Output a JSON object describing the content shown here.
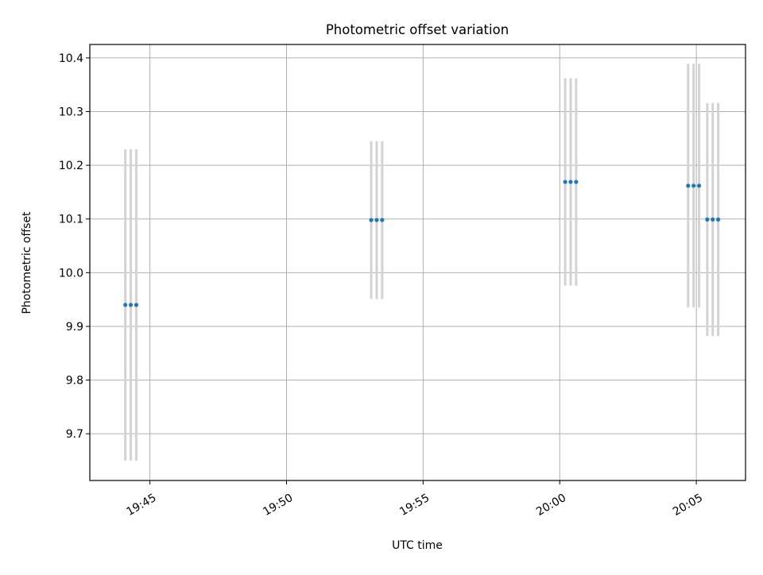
{
  "chart_data": {
    "type": "scatter",
    "title": "Photometric offset variation",
    "xlabel": "UTC time",
    "ylabel": "Photometric offset",
    "x_tick_labels": [
      "19:45",
      "19:50",
      "19:55",
      "20:00",
      "20:05"
    ],
    "x_ticks_minutes": [
      1185,
      1190,
      1195,
      1200,
      1205
    ],
    "xlim_minutes": [
      1182.8,
      1206.8
    ],
    "y_ticks": [
      9.7,
      9.8,
      9.9,
      10.0,
      10.1,
      10.2,
      10.3,
      10.4
    ],
    "y_tick_labels": [
      "9.7",
      "9.8",
      "9.9",
      "10.0",
      "10.1",
      "10.2",
      "10.3",
      "10.4"
    ],
    "ylim": [
      9.613,
      10.425
    ],
    "grid": true,
    "colors": {
      "point": "#1f77b4",
      "errorbar": "#d3d3d3",
      "grid": "#b0b0b0"
    },
    "series": [
      {
        "points": [
          {
            "t": "19:44:06",
            "y": 9.94,
            "err": 0.29
          },
          {
            "t": "19:44:18",
            "y": 9.94,
            "err": 0.29
          },
          {
            "t": "19:44:30",
            "y": 9.94,
            "err": 0.29
          },
          {
            "t": "19:53:06",
            "y": 10.098,
            "err": 0.147
          },
          {
            "t": "19:53:18",
            "y": 10.098,
            "err": 0.147
          },
          {
            "t": "19:53:30",
            "y": 10.098,
            "err": 0.147
          },
          {
            "t": "20:00:12",
            "y": 10.169,
            "err": 0.193
          },
          {
            "t": "20:00:24",
            "y": 10.169,
            "err": 0.193
          },
          {
            "t": "20:00:36",
            "y": 10.169,
            "err": 0.193
          },
          {
            "t": "20:04:42",
            "y": 10.162,
            "err": 0.227
          },
          {
            "t": "20:04:54",
            "y": 10.162,
            "err": 0.227
          },
          {
            "t": "20:05:06",
            "y": 10.162,
            "err": 0.227
          },
          {
            "t": "20:05:24",
            "y": 10.099,
            "err": 0.217
          },
          {
            "t": "20:05:36",
            "y": 10.099,
            "err": 0.217
          },
          {
            "t": "20:05:48",
            "y": 10.099,
            "err": 0.217
          }
        ]
      }
    ]
  }
}
